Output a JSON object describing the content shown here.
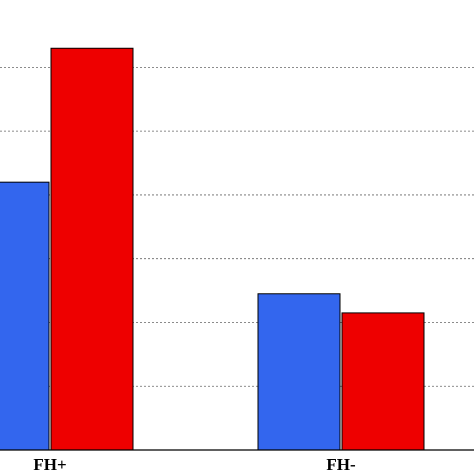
{
  "chart_data": {
    "type": "bar",
    "categories": [
      "FH+",
      "FH-"
    ],
    "series": [
      {
        "values": [
          4.2,
          2.45
        ]
      },
      {
        "values": [
          6.3,
          2.15
        ]
      }
    ],
    "ylim": [
      0,
      6.9
    ],
    "y_gridlines": [
      1,
      2,
      3,
      4,
      5,
      6
    ],
    "grid": true,
    "colors": [
      "#3366ee",
      "#ee0000"
    ]
  }
}
